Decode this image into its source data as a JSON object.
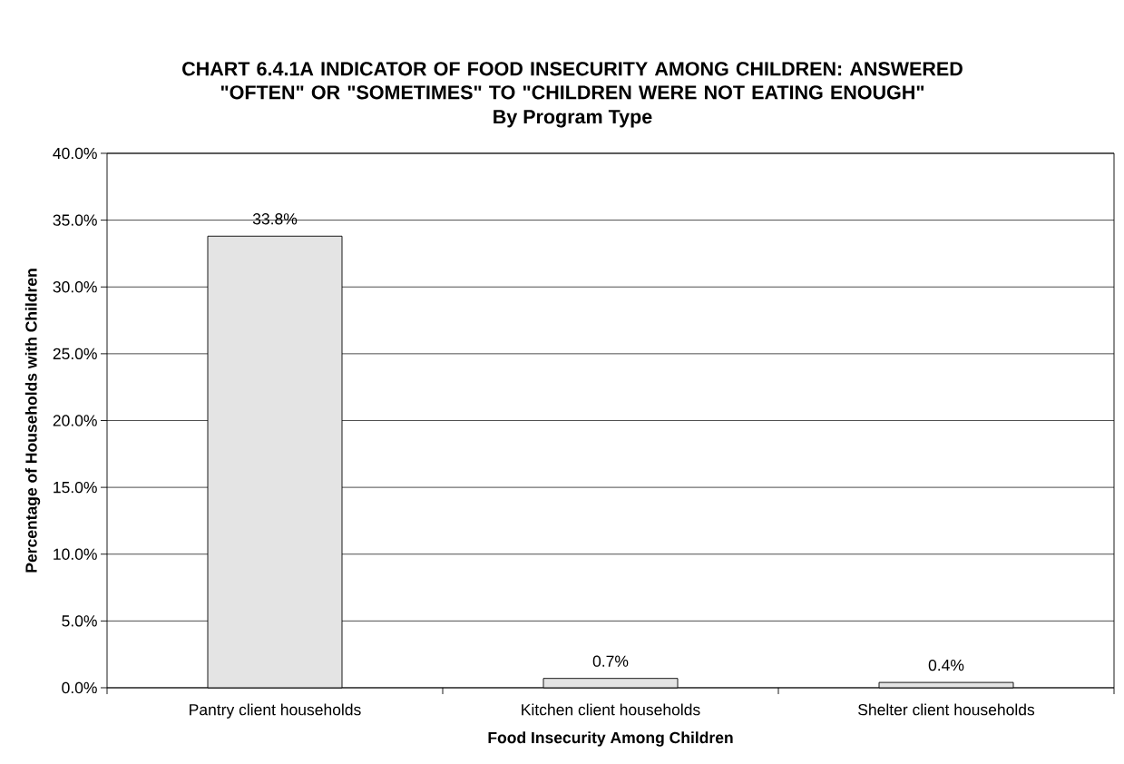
{
  "chart_data": {
    "type": "bar",
    "title": "CHART 6.4.1A      INDICATOR OF FOOD INSECURITY AMONG CHILDREN:  ANSWERED \"OFTEN\" OR \"SOMETIMES\" TO \"CHILDREN WERE NOT EATING ENOUGH\"",
    "subtitle": "By Program Type",
    "xlabel": "Food Insecurity Among Children",
    "ylabel": "Percentage of Households with Children",
    "categories": [
      "Pantry client households",
      "Kitchen client households",
      "Shelter client households"
    ],
    "values": [
      33.8,
      0.7,
      0.4
    ],
    "value_labels": [
      "33.8%",
      "0.7%",
      "0.4%"
    ],
    "color": "#e4e4e4",
    "ylim": [
      0,
      40
    ],
    "yticks": [
      {
        "value": 0,
        "label": "0.0%"
      },
      {
        "value": 5,
        "label": "5.0%"
      },
      {
        "value": 10,
        "label": "10.0%"
      },
      {
        "value": 15,
        "label": "15.0%"
      },
      {
        "value": 20,
        "label": "20.0%"
      },
      {
        "value": 25,
        "label": "25.0%"
      },
      {
        "value": 30,
        "label": "30.0%"
      },
      {
        "value": 35,
        "label": "35.0%"
      },
      {
        "value": 40,
        "label": "40.0%"
      }
    ],
    "grid": "y"
  }
}
